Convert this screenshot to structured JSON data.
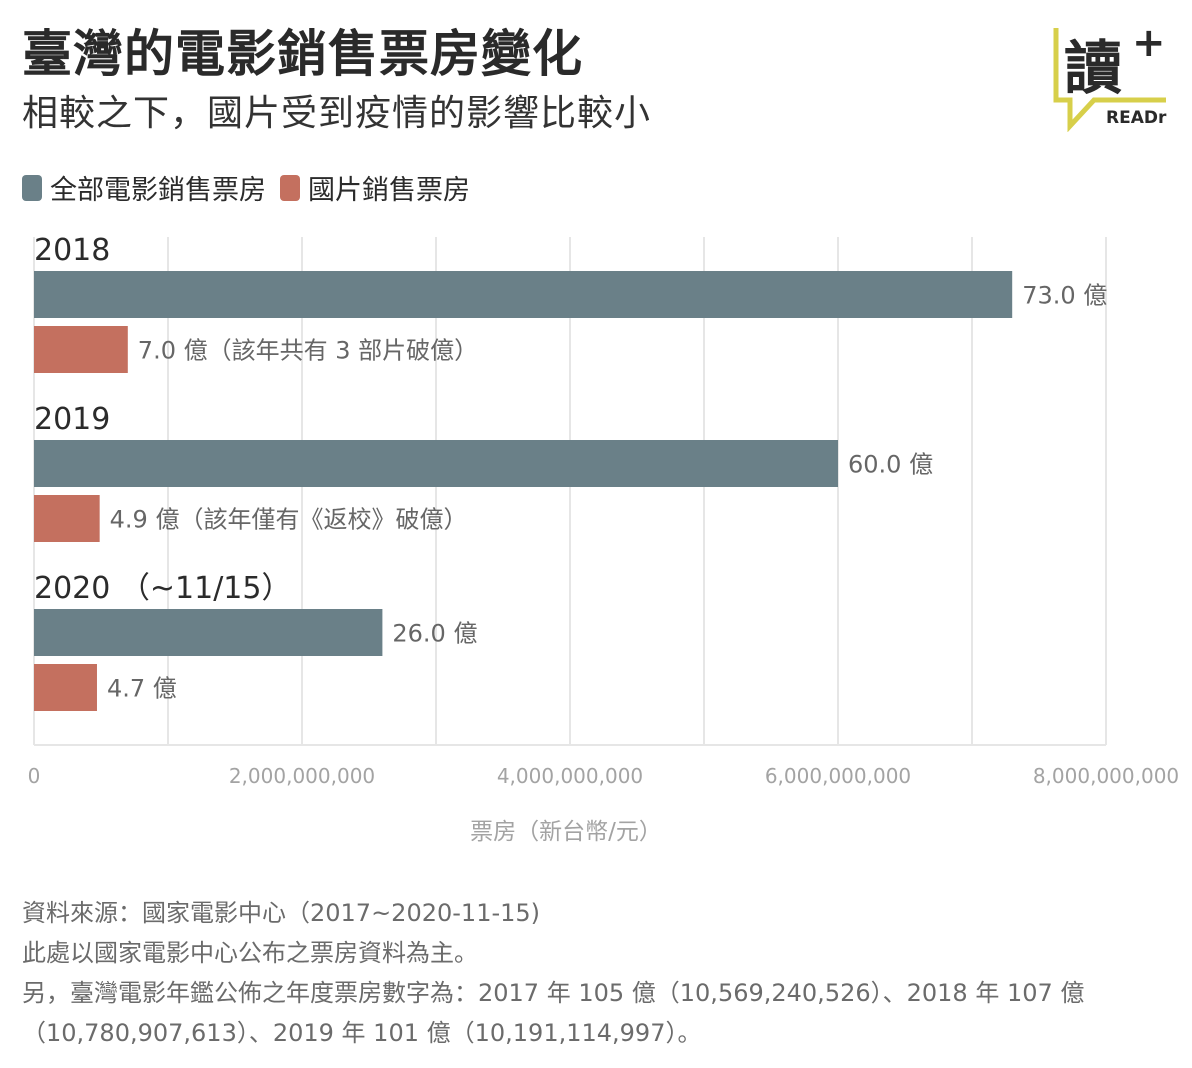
{
  "header": {
    "title": "臺灣的電影銷售票房變化",
    "subtitle": "相較之下，國片受到疫情的影響比較小"
  },
  "logo": {
    "main_text": "讀",
    "plus": "+",
    "brand": "READr",
    "accent_color": "#d7cf4a"
  },
  "chart_data": {
    "type": "bar",
    "orientation": "horizontal",
    "categories": [
      "2018",
      "2019",
      "2020 （~11/15）"
    ],
    "series": [
      {
        "name": "全部電影銷售票房",
        "color": "#6a8088",
        "values": [
          7300000000,
          6000000000,
          2600000000
        ],
        "labels": [
          "73.0 億",
          "60.0 億",
          "26.0 億"
        ]
      },
      {
        "name": "國片銷售票房",
        "color": "#c4705f",
        "values": [
          700000000,
          490000000,
          470000000
        ],
        "labels": [
          "7.0 億（該年共有 3 部片破億）",
          "4.9 億（該年僅有《返校》破億）",
          "4.7 億"
        ]
      }
    ],
    "x_ticks": [
      0,
      2000000000,
      4000000000,
      6000000000,
      8000000000
    ],
    "x_tick_labels": [
      "0",
      "2,000,000,000",
      "4,000,000,000",
      "6,000,000,000",
      "8,000,000,000"
    ],
    "xlim": [
      0,
      8000000000
    ],
    "xlabel": "票房（新台幣/元）",
    "grid": true,
    "legend_position": "top-left"
  },
  "source": {
    "line1": "資料來源：國家電影中心（2017~2020-11-15)",
    "line2": "此處以國家電影中心公布之票房資料為主。",
    "line3": "另，臺灣電影年鑑公佈之年度票房數字為：2017 年 105 億（10,569,240,526）、2018 年 107 億",
    "line4": "（10,780,907,613）、2019 年 101 億（10,191,114,997）。"
  }
}
